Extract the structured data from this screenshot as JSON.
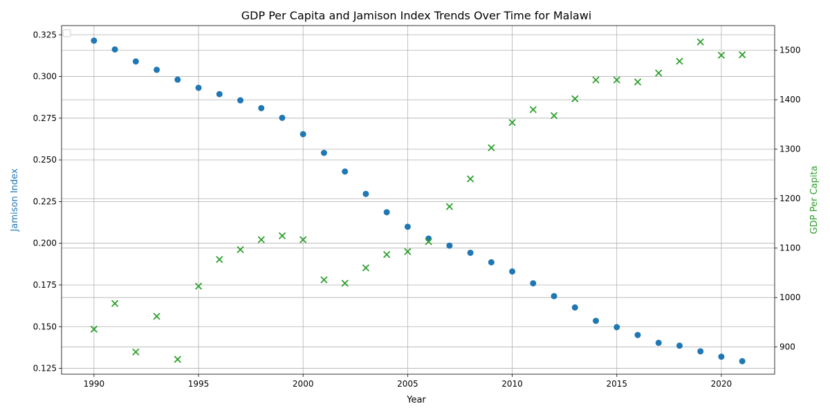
{
  "chart_data": {
    "type": "scatter",
    "title": "GDP Per Capita and Jamison Index Trends Over Time for Malawi",
    "xlabel": "Year",
    "ylabel_left": "Jamison Index",
    "ylabel_right": "GDP Per Capita",
    "xlim": [
      1988.45,
      2022.55
    ],
    "ylim_left": [
      0.1215,
      0.3305
    ],
    "ylim_right": [
      845,
      1550
    ],
    "x_ticks": [
      1990,
      1995,
      2000,
      2005,
      2010,
      2015,
      2020
    ],
    "y_ticks_left": [
      0.125,
      0.15,
      0.175,
      0.2,
      0.225,
      0.25,
      0.275,
      0.3,
      0.325
    ],
    "y_ticks_right": [
      900,
      1000,
      1100,
      1200,
      1300,
      1400,
      1500
    ],
    "grid": true,
    "legend": "top-left",
    "colors": {
      "jamison": "#1f77b4",
      "gdp": "#2ca02c"
    },
    "x": [
      1990,
      1991,
      1992,
      1993,
      1994,
      1995,
      1996,
      1997,
      1998,
      1999,
      2000,
      2001,
      2002,
      2003,
      2004,
      2005,
      2006,
      2007,
      2008,
      2009,
      2010,
      2011,
      2012,
      2013,
      2014,
      2015,
      2016,
      2017,
      2018,
      2019,
      2020,
      2021
    ],
    "series": [
      {
        "axis": "left",
        "marker": "circle",
        "values": [
          0.3215,
          0.3162,
          0.309,
          0.304,
          0.2981,
          0.2932,
          0.2894,
          0.2857,
          0.281,
          0.2752,
          0.2654,
          0.2542,
          0.243,
          0.2296,
          0.2186,
          0.2099,
          0.2028,
          0.1986,
          0.1943,
          0.1886,
          0.1831,
          0.176,
          0.1683,
          0.1615,
          0.1535,
          0.1497,
          0.145,
          0.1403,
          0.1386,
          0.1352,
          0.132,
          0.1293
        ]
      },
      {
        "axis": "right",
        "marker": "x",
        "values": [
          936,
          988,
          890,
          962,
          875,
          1023,
          1077,
          1097,
          1117,
          1125,
          1117,
          1036,
          1029,
          1060,
          1087,
          1093,
          1113,
          1184,
          1240,
          1303,
          1354,
          1380,
          1368,
          1402,
          1440,
          1440,
          1436,
          1454,
          1478,
          1517,
          1490,
          1491
        ]
      }
    ]
  }
}
